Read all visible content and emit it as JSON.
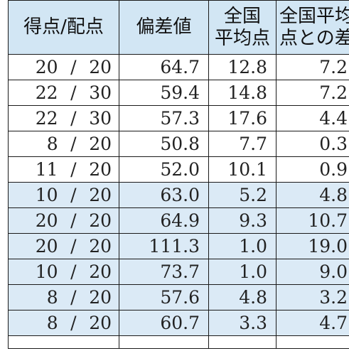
{
  "table": {
    "headers": {
      "score": "得点/配点",
      "deviation": "偏差値",
      "national_avg_line1": "全国",
      "national_avg_line2": "平均点",
      "diff_line1": "全国平均",
      "diff_line2": "点との差"
    },
    "rows": [
      {
        "score": "20",
        "slash": "/",
        "max": "20",
        "deviation": "64.7",
        "national_avg": "12.8",
        "diff": "7.2",
        "band": "white"
      },
      {
        "score": "22",
        "slash": "/",
        "max": "30",
        "deviation": "59.4",
        "national_avg": "14.8",
        "diff": "7.2",
        "band": "white"
      },
      {
        "score": "22",
        "slash": "/",
        "max": "30",
        "deviation": "57.3",
        "national_avg": "17.6",
        "diff": "4.4",
        "band": "white"
      },
      {
        "score": "8",
        "slash": "/",
        "max": "20",
        "deviation": "50.8",
        "national_avg": "7.7",
        "diff": "0.3",
        "band": "white"
      },
      {
        "score": "11",
        "slash": "/",
        "max": "20",
        "deviation": "52.0",
        "national_avg": "10.1",
        "diff": "0.9",
        "band": "white"
      },
      {
        "score": "10",
        "slash": "/",
        "max": "20",
        "deviation": "63.0",
        "national_avg": "5.2",
        "diff": "4.8",
        "band": "blue"
      },
      {
        "score": "20",
        "slash": "/",
        "max": "20",
        "deviation": "64.9",
        "national_avg": "9.3",
        "diff": "10.7",
        "band": "blue"
      },
      {
        "score": "20",
        "slash": "/",
        "max": "20",
        "deviation": "111.3",
        "national_avg": "1.0",
        "diff": "19.0",
        "band": "blue"
      },
      {
        "score": "10",
        "slash": "/",
        "max": "20",
        "deviation": "73.7",
        "national_avg": "1.0",
        "diff": "9.0",
        "band": "blue"
      },
      {
        "score": "8",
        "slash": "/",
        "max": "20",
        "deviation": "57.6",
        "national_avg": "4.8",
        "diff": "3.2",
        "band": "blue"
      },
      {
        "score": "8",
        "slash": "/",
        "max": "20",
        "deviation": "60.7",
        "national_avg": "3.3",
        "diff": "4.7",
        "band": "blue"
      }
    ]
  }
}
